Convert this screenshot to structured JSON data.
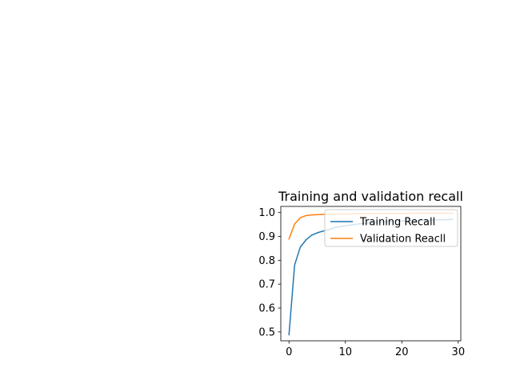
{
  "chart_data": {
    "type": "line",
    "title": "Training and validation recall",
    "xlabel": "",
    "ylabel": "",
    "xlim": [
      -1.45,
      30.45
    ],
    "ylim": [
      0.4627,
      1.0257
    ],
    "xticks": [
      0,
      10,
      20,
      30
    ],
    "yticks": [
      0.5,
      0.6,
      0.7,
      0.8,
      0.9,
      1.0
    ],
    "xtick_labels": [
      "0",
      "10",
      "20",
      "30"
    ],
    "ytick_labels": [
      "0.5",
      "0.6",
      "0.7",
      "0.8",
      "0.9",
      "1.0"
    ],
    "grid": false,
    "legend_position": "upper right",
    "x": [
      0,
      1,
      2,
      3,
      4,
      5,
      6,
      7,
      8,
      9,
      10,
      11,
      12,
      13,
      14,
      15,
      16,
      17,
      18,
      19,
      20,
      21,
      22,
      23,
      24,
      25,
      26,
      27,
      28,
      29
    ],
    "series": [
      {
        "name": "Training Recall",
        "color": "#1f77b4",
        "values": [
          0.488,
          0.78,
          0.855,
          0.885,
          0.905,
          0.915,
          0.922,
          0.928,
          0.936,
          0.941,
          0.944,
          0.948,
          0.951,
          0.954,
          0.956,
          0.958,
          0.96,
          0.961,
          0.962,
          0.963,
          0.964,
          0.965,
          0.966,
          0.967,
          0.968,
          0.968,
          0.969,
          0.97,
          0.97,
          0.972
        ]
      },
      {
        "name": "Validation Reacll",
        "color": "#ff7f0e",
        "values": [
          0.889,
          0.952,
          0.978,
          0.987,
          0.99,
          0.991,
          0.992,
          0.993,
          0.993,
          0.994,
          0.994,
          0.994,
          0.995,
          0.995,
          0.995,
          0.995,
          0.996,
          0.996,
          0.996,
          0.996,
          0.996,
          0.996,
          0.997,
          0.997,
          0.997,
          0.997,
          0.997,
          0.997,
          0.997,
          0.997
        ]
      }
    ]
  }
}
